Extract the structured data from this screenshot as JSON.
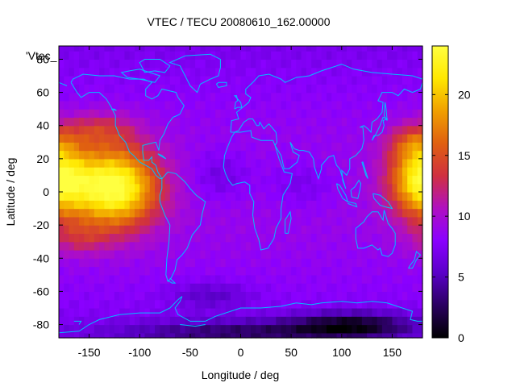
{
  "chart_data": {
    "type": "heatmap",
    "title": "VTEC / TECU 20080610_162.00000",
    "xlabel": "Longitude / deg",
    "ylabel": "Latitude / deg",
    "key_label": "'Vtec_",
    "xlim": [
      -180,
      180
    ],
    "ylim": [
      -88,
      88
    ],
    "xticks": [
      -150,
      -100,
      -50,
      0,
      50,
      100,
      150
    ],
    "yticks": [
      -80,
      -60,
      -40,
      -20,
      0,
      20,
      40,
      60,
      80
    ],
    "colorbar": {
      "min": 0,
      "max": 24,
      "ticks": [
        0,
        5,
        10,
        15,
        20
      ]
    },
    "palette": [
      "#000000",
      "#2a0060",
      "#5a00c8",
      "#8a00ff",
      "#b010c0",
      "#d03040",
      "#e06010",
      "#f0a000",
      "#ffe800",
      "#ffff40"
    ],
    "coastline_color": "#00bfff",
    "grid": {
      "lon_step": 5,
      "lat_step": 5
    },
    "value_model": "equatorial anomaly peak centered near lon -120 to -140 and lon 165 to 180 (values up to ~24 TECU); background 5-9 TECU; minimum near south pole ~1 TECU"
  }
}
